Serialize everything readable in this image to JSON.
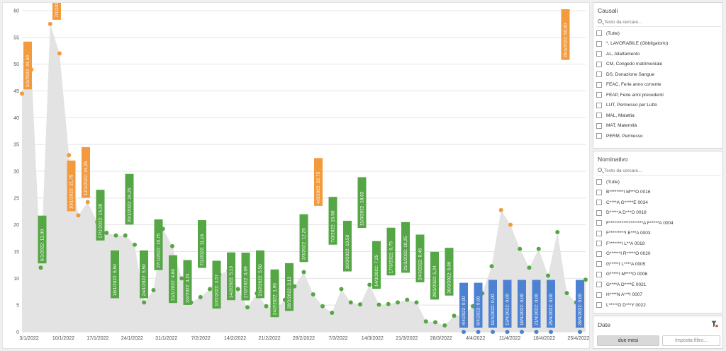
{
  "chart_data": {
    "type": "area",
    "ylim": [
      0,
      60
    ],
    "yticks": [
      0,
      5,
      10,
      15,
      20,
      25,
      30,
      35,
      40,
      45,
      50,
      55,
      60
    ],
    "xlim": [
      "2022-03-01",
      "2022-04-30"
    ],
    "xticks": [
      "3/1/2022",
      "10/1/2022",
      "17/1/2022",
      "24/1/2022",
      "31/1/2022",
      "7/2/2022",
      "14/2/2022",
      "21/2/2022",
      "28/2/2022",
      "7/3/2022",
      "14/3/2022",
      "21/3/2022",
      "28/3/2022",
      "4/4/2022",
      "11/4/2022",
      "18/4/2022",
      "25/4/2022"
    ],
    "grid": true,
    "colors": {
      "area": "#e3e3e3",
      "high": "#f39a3d",
      "normal": "#55a645",
      "zero": "#4d82d3",
      "label_text": "#ffffff"
    },
    "series": [
      {
        "x": "2022-03-01",
        "y": 44.5
      },
      {
        "x": "2022-03-02",
        "y": 49.0
      },
      {
        "x": "2022-03-03",
        "y": 12.0
      },
      {
        "x": "2022-03-04",
        "y": 57.5
      },
      {
        "x": "2022-03-05",
        "y": 52.0
      },
      {
        "x": "2022-03-06",
        "y": 33.0
      },
      {
        "x": "2022-03-07",
        "y": 21.75
      },
      {
        "x": "2022-03-08",
        "y": 24.25
      },
      {
        "x": "2022-03-09",
        "y": 20.5
      },
      {
        "x": "2022-03-10",
        "y": 18.5
      },
      {
        "x": "2022-03-11",
        "y": 18.0
      },
      {
        "x": "2022-03-12",
        "y": 18.0
      },
      {
        "x": "2022-03-13",
        "y": 16.28
      },
      {
        "x": "2022-03-14",
        "y": 5.5
      },
      {
        "x": "2022-03-15",
        "y": 7.8
      },
      {
        "x": "2022-03-16",
        "y": 19.25
      },
      {
        "x": "2022-03-17",
        "y": 16.0
      },
      {
        "x": "2022-03-18",
        "y": 10.0
      },
      {
        "x": "2022-03-19",
        "y": 5.5
      },
      {
        "x": "2022-03-20",
        "y": 6.5
      },
      {
        "x": "2022-03-21",
        "y": 8.0
      },
      {
        "x": "2022-03-22",
        "y": 10.75
      },
      {
        "x": "2022-03-23",
        "y": 11.4
      },
      {
        "x": "2022-03-24",
        "y": 8.0
      },
      {
        "x": "2022-03-25",
        "y": 4.6
      },
      {
        "x": "2022-03-26",
        "y": 7.2
      },
      {
        "x": "2022-03-27",
        "y": 4.8
      },
      {
        "x": "2022-03-28",
        "y": 4.24
      },
      {
        "x": "2022-03-29",
        "y": 6.0
      },
      {
        "x": "2022-03-30",
        "y": 8.5
      },
      {
        "x": "2022-03-31",
        "y": 11.16
      },
      {
        "x": "2022-04-01",
        "y": 7.0
      },
      {
        "x": "2022-04-02",
        "y": 4.8
      },
      {
        "x": "2022-04-03",
        "y": 3.57
      },
      {
        "x": "2022-04-04",
        "y": 8.0
      },
      {
        "x": "2022-04-05",
        "y": 5.5
      },
      {
        "x": "2022-04-06",
        "y": 5.13
      },
      {
        "x": "2022-04-07",
        "y": 8.8
      },
      {
        "x": "2022-04-08",
        "y": 5.09
      },
      {
        "x": "2022-04-09",
        "y": 5.2
      },
      {
        "x": "2022-04-10",
        "y": 5.5
      },
      {
        "x": "2022-04-11",
        "y": 6.0
      },
      {
        "x": "2022-04-12",
        "y": 5.5
      },
      {
        "x": "2022-04-13",
        "y": 1.95
      },
      {
        "x": "2022-04-14",
        "y": 1.8
      },
      {
        "x": "2022-04-15",
        "y": 1.2
      },
      {
        "x": "2022-04-16",
        "y": 3.0
      },
      {
        "x": "2022-04-17",
        "y": 3.13
      },
      {
        "x": "2022-04-18",
        "y": 4.8
      },
      {
        "x": "2022-04-19",
        "y": 7.2
      },
      {
        "x": "2022-04-20",
        "y": 12.25
      },
      {
        "x": "2022-04-21",
        "y": 22.75
      },
      {
        "x": "2022-04-22",
        "y": 20.0
      },
      {
        "x": "2022-04-23",
        "y": 15.5
      },
      {
        "x": "2022-04-24",
        "y": 12.0
      },
      {
        "x": "2022-04-25",
        "y": 15.5
      },
      {
        "x": "2022-04-26",
        "y": 10.5
      },
      {
        "x": "2022-04-27",
        "y": 18.63
      },
      {
        "x": "2022-04-28",
        "y": 7.25
      },
      {
        "x": "2022-04-29",
        "y": 5.5
      },
      {
        "x": "2022-04-30",
        "y": 9.75
      }
    ],
    "labels": [
      {
        "text": "3/1/2022: 44,50",
        "color": "high"
      },
      {
        "text": "6/1/2022: 12,00",
        "color": "normal"
      },
      {
        "text": "7/1/2022: 57,50",
        "color": "high"
      },
      {
        "text": "10/1/2022: 21,75",
        "color": "high"
      },
      {
        "text": "12/1/2022: 24,25",
        "color": "high"
      },
      {
        "text": "17/1/2022: 16,28",
        "color": "normal"
      },
      {
        "text": "18/1/2022: 5,50",
        "color": "normal"
      },
      {
        "text": "20/1/2022: 19,25",
        "color": "normal"
      },
      {
        "text": "24/1/2022: 5,50",
        "color": "normal"
      },
      {
        "text": "27/1/2022: 10,75",
        "color": "normal"
      },
      {
        "text": "31/1/2022: 4,60",
        "color": "normal"
      },
      {
        "text": "3/2/2022: 4,24",
        "color": "normal"
      },
      {
        "text": "7/2/2022: 11,16",
        "color": "normal"
      },
      {
        "text": "10/2/2022: 3,57",
        "color": "normal"
      },
      {
        "text": "14/2/2022: 5,13",
        "color": "normal"
      },
      {
        "text": "17/2/2022: 5,09",
        "color": "normal"
      },
      {
        "text": "21/2/2022: 5,50",
        "color": "normal"
      },
      {
        "text": "24/2/2022: 1,95",
        "color": "normal"
      },
      {
        "text": "28/2/2022: 3,13",
        "color": "normal"
      },
      {
        "text": "3/3/2022: 12,25",
        "color": "normal"
      },
      {
        "text": "4/3/2022: 22,75",
        "color": "high"
      },
      {
        "text": "7/3/2022: 15,50",
        "color": "normal"
      },
      {
        "text": "10/3/2022: 10,50",
        "color": "normal"
      },
      {
        "text": "11/3/2022: 18,63",
        "color": "normal"
      },
      {
        "text": "14/3/2022: 7,25",
        "color": "normal"
      },
      {
        "text": "17/3/2022: 9,75",
        "color": "normal"
      },
      {
        "text": "21/3/2022: 10,25",
        "color": "normal"
      },
      {
        "text": "24/3/2022: 8,46",
        "color": "normal"
      },
      {
        "text": "28/3/2022: 5,24",
        "color": "normal"
      },
      {
        "text": "30/3/2022: 5,99",
        "color": "normal"
      },
      {
        "text": "4/4/2022: 0,00",
        "color": "zero"
      },
      {
        "text": "6/4/2022: 0,00",
        "color": "zero"
      },
      {
        "text": "11/4/2022: 0,00",
        "color": "zero"
      },
      {
        "text": "13/4/2022: 0,00",
        "color": "zero"
      },
      {
        "text": "18/4/2022: 0,00",
        "color": "zero"
      },
      {
        "text": "21/4/2022: 0,00",
        "color": "zero"
      },
      {
        "text": "25/4/2022: 0,00",
        "color": "zero"
      },
      {
        "text": "26/4/2022: 50,00",
        "color": "high"
      },
      {
        "text": "28/4/2022: 0,00",
        "color": "zero"
      }
    ]
  },
  "causali": {
    "title": "Causali",
    "search_placeholder": "Testo da cercare...",
    "items": [
      "(Tutte)",
      "*, LAVORABILE (Obbligatorio)",
      "AL, Allattamento",
      "CM, Congedo matrimoniale",
      "DS, Donazione Sangue",
      "FEAC, Ferie anno corrente",
      "FEAP, Ferie anni precedenti",
      "LUT, Permesso per Lutto",
      "MAL, Malattia",
      "MAT, Maternità",
      "PERM, Permesso"
    ]
  },
  "nominativo": {
    "title": "Nominativo",
    "search_placeholder": "Testo da cercare...",
    "items": [
      "(Tutte)",
      "B********I M***O 0016",
      "C****A G*****E 0034",
      "D*****A D***O 0018",
      "F*******************A F*****A 0004",
      "F*********I E***A 0003",
      "F*******I L**A 0019",
      "G******I R*****O 0020",
      "G*****I L****A 0005",
      "G*****I M****O 0006",
      "G****A D****E 0021",
      "H****N A***I 0007",
      "L*****O D***Y 0022",
      "M*******I A****A 0008"
    ]
  },
  "date_filter": {
    "title": "Date",
    "primary_button": "due mesi",
    "secondary_button": "Imposta filtro..."
  }
}
